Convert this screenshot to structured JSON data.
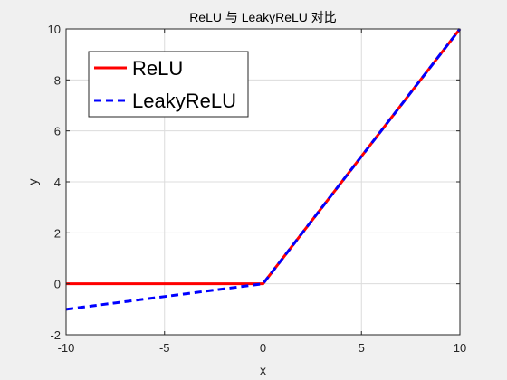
{
  "chart_data": {
    "type": "line",
    "title": "ReLU 与 LeakyReLU 对比",
    "xlabel": "x",
    "ylabel": "y",
    "xlim": [
      -10,
      10
    ],
    "ylim": [
      -2,
      10
    ],
    "xticks": [
      -10,
      -5,
      0,
      5,
      10
    ],
    "yticks": [
      -2,
      0,
      2,
      4,
      6,
      8,
      10
    ],
    "xtick_labels": [
      "-10",
      "-5",
      "0",
      "5",
      "10"
    ],
    "ytick_labels": [
      "-2",
      "0",
      "2",
      "4",
      "6",
      "8",
      "10"
    ],
    "grid": true,
    "legend_position": "top-left",
    "series": [
      {
        "name": "ReLU",
        "color": "#ff0000",
        "style": "solid",
        "x": [
          -10,
          0,
          10
        ],
        "y": [
          0,
          0,
          10
        ]
      },
      {
        "name": "LeakyReLU",
        "color": "#0000ff",
        "style": "dashed",
        "x": [
          -10,
          0,
          10
        ],
        "y": [
          -1,
          0,
          10
        ]
      }
    ]
  }
}
